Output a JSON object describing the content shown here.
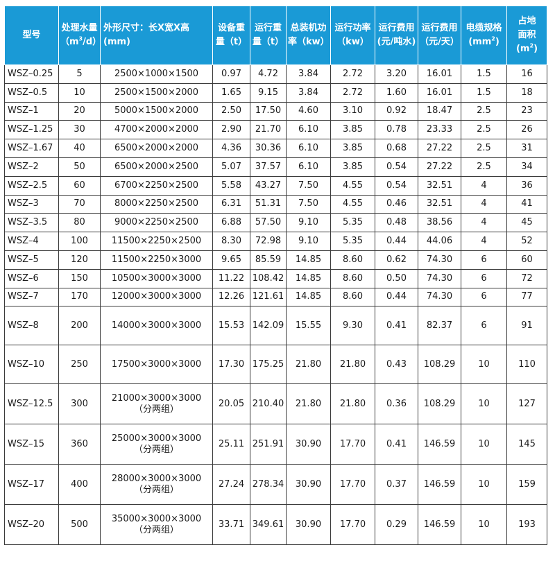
{
  "header": {
    "model": "型号",
    "capacity_l1": "处理水量",
    "capacity_l2": "（m",
    "capacity_sup": "3",
    "capacity_l2b": "/d）",
    "dims": "外形尺寸：长X宽X高(mm)",
    "equip_weight_l1": "设备重",
    "equip_weight_l2": "量（t）",
    "run_weight_l1": "运行重",
    "run_weight_l2": "量（t）",
    "installed_power_l1": "总装机功",
    "installed_power_l2": "率（kw）",
    "run_power_l1": "运行功率",
    "run_power_l2": "（kw）",
    "cost_ton_l1": "运行费用",
    "cost_ton_l2": "(元/吨水)",
    "cost_day_l1": "运行费用",
    "cost_day_l2": "（元/天）",
    "cable_l1": "电缆规格",
    "cable_l2": "(mm",
    "cable_sup": "2",
    "cable_l2b": ")",
    "area_l1": "占地",
    "area_l2": "面积(m",
    "area_sup": "2",
    "area_l2b": ")"
  },
  "rows": [
    {
      "model": "WSZ–0.25",
      "capacity": "5",
      "dims": "2500×1000×1500",
      "dims_note": "",
      "equip_weight": "0.97",
      "run_weight": "4.72",
      "installed_power": "3.84",
      "run_power": "2.72",
      "cost_ton": "3.20",
      "cost_day": "16.01",
      "cable": "1.5",
      "area": "16"
    },
    {
      "model": "WSZ–0.5",
      "capacity": "10",
      "dims": "2500×1500×2000",
      "dims_note": "",
      "equip_weight": "1.65",
      "run_weight": "9.15",
      "installed_power": "3.84",
      "run_power": "2.72",
      "cost_ton": "1.60",
      "cost_day": "16.01",
      "cable": "1.5",
      "area": "18"
    },
    {
      "model": "WSZ–1",
      "capacity": "20",
      "dims": "5000×1500×2000",
      "dims_note": "",
      "equip_weight": "2.50",
      "run_weight": "17.50",
      "installed_power": "4.60",
      "run_power": "3.10",
      "cost_ton": "0.92",
      "cost_day": "18.47",
      "cable": "2.5",
      "area": "23"
    },
    {
      "model": "WSZ–1.25",
      "capacity": "30",
      "dims": "4700×2000×2000",
      "dims_note": "",
      "equip_weight": "2.90",
      "run_weight": "21.70",
      "installed_power": "6.10",
      "run_power": "3.85",
      "cost_ton": "0.78",
      "cost_day": "23.33",
      "cable": "2.5",
      "area": "26"
    },
    {
      "model": "WSZ–1.67",
      "capacity": "40",
      "dims": "6500×2000×2000",
      "dims_note": "",
      "equip_weight": "4.36",
      "run_weight": "30.36",
      "installed_power": "6.10",
      "run_power": "3.85",
      "cost_ton": "0.68",
      "cost_day": "27.22",
      "cable": "2.5",
      "area": "31"
    },
    {
      "model": "WSZ–2",
      "capacity": "50",
      "dims": "6500×2000×2500",
      "dims_note": "",
      "equip_weight": "5.07",
      "run_weight": "37.57",
      "installed_power": "6.10",
      "run_power": "3.85",
      "cost_ton": "0.54",
      "cost_day": "27.22",
      "cable": "2.5",
      "area": "34"
    },
    {
      "model": "WSZ–2.5",
      "capacity": "60",
      "dims": "6700×2250×2500",
      "dims_note": "",
      "equip_weight": "5.58",
      "run_weight": "43.27",
      "installed_power": "7.50",
      "run_power": "4.55",
      "cost_ton": "0.54",
      "cost_day": "32.51",
      "cable": "4",
      "area": "36"
    },
    {
      "model": "WSZ–3",
      "capacity": "70",
      "dims": "8000×2250×2500",
      "dims_note": "",
      "equip_weight": "6.31",
      "run_weight": "51.31",
      "installed_power": "7.50",
      "run_power": "4.55",
      "cost_ton": "0.46",
      "cost_day": "32.51",
      "cable": "4",
      "area": "41"
    },
    {
      "model": "WSZ–3.5",
      "capacity": "80",
      "dims": "9000×2250×2500",
      "dims_note": "",
      "equip_weight": "6.88",
      "run_weight": "57.50",
      "installed_power": "9.10",
      "run_power": "5.35",
      "cost_ton": "0.48",
      "cost_day": "38.56",
      "cable": "4",
      "area": "45"
    },
    {
      "model": "WSZ–4",
      "capacity": "100",
      "dims": "11500×2250×2500",
      "dims_note": "",
      "equip_weight": "8.30",
      "run_weight": "72.98",
      "installed_power": "9.10",
      "run_power": "5.35",
      "cost_ton": "0.44",
      "cost_day": "44.06",
      "cable": "4",
      "area": "52"
    },
    {
      "model": "WSZ–5",
      "capacity": "120",
      "dims": "11500×2250×3000",
      "dims_note": "",
      "equip_weight": "9.65",
      "run_weight": "85.59",
      "installed_power": "14.85",
      "run_power": "8.60",
      "cost_ton": "0.62",
      "cost_day": "74.30",
      "cable": "6",
      "area": "60"
    },
    {
      "model": "WSZ–6",
      "capacity": "150",
      "dims": "10500×3000×3000",
      "dims_note": "",
      "equip_weight": "11.22",
      "run_weight": "108.42",
      "installed_power": "14.85",
      "run_power": "8.60",
      "cost_ton": "0.50",
      "cost_day": "74.30",
      "cable": "6",
      "area": "72"
    },
    {
      "model": "WSZ–7",
      "capacity": "170",
      "dims": "12000×3000×3000",
      "dims_note": "",
      "equip_weight": "12.26",
      "run_weight": "121.61",
      "installed_power": "14.85",
      "run_power": "8.60",
      "cost_ton": "0.44",
      "cost_day": "74.30",
      "cable": "6",
      "area": "77"
    },
    {
      "model": "WSZ–8",
      "capacity": "200",
      "dims": "14000×3000×3000",
      "dims_note": "",
      "equip_weight": "15.53",
      "run_weight": "142.09",
      "installed_power": "15.55",
      "run_power": "9.30",
      "cost_ton": "0.41",
      "cost_day": "82.37",
      "cable": "6",
      "area": "91"
    },
    {
      "model": "WSZ–10",
      "capacity": "250",
      "dims": "17500×3000×3000",
      "dims_note": "",
      "equip_weight": "17.30",
      "run_weight": "175.25",
      "installed_power": "21.80",
      "run_power": "21.80",
      "cost_ton": "0.43",
      "cost_day": "108.29",
      "cable": "10",
      "area": "110"
    },
    {
      "model": "WSZ–12.5",
      "capacity": "300",
      "dims": "21000×3000×3000",
      "dims_note": "（分两组）",
      "equip_weight": "20.05",
      "run_weight": "210.40",
      "installed_power": "21.80",
      "run_power": "21.80",
      "cost_ton": "0.36",
      "cost_day": "108.29",
      "cable": "10",
      "area": "127"
    },
    {
      "model": "WSZ–15",
      "capacity": "360",
      "dims": "25000×3000×3000",
      "dims_note": "（分两组）",
      "equip_weight": "25.11",
      "run_weight": "251.91",
      "installed_power": "30.90",
      "run_power": "17.70",
      "cost_ton": "0.41",
      "cost_day": "146.59",
      "cable": "10",
      "area": "145"
    },
    {
      "model": "WSZ–17",
      "capacity": "400",
      "dims": "28000×3000×3000",
      "dims_note": "（分两组）",
      "equip_weight": "27.24",
      "run_weight": "278.34",
      "installed_power": "30.90",
      "run_power": "17.70",
      "cost_ton": "0.37",
      "cost_day": "146.59",
      "cable": "10",
      "area": "159"
    },
    {
      "model": "WSZ–20",
      "capacity": "500",
      "dims": "35000×3000×3000",
      "dims_note": "（分两组）",
      "equip_weight": "33.71",
      "run_weight": "349.61",
      "installed_power": "30.90",
      "run_power": "17.70",
      "cost_ton": "0.29",
      "cost_day": "146.59",
      "cable": "10",
      "area": "193"
    }
  ],
  "colors": {
    "header_bg": "#1a9ad6",
    "header_text": "#ffffff",
    "grid": "#3a3a3a"
  }
}
